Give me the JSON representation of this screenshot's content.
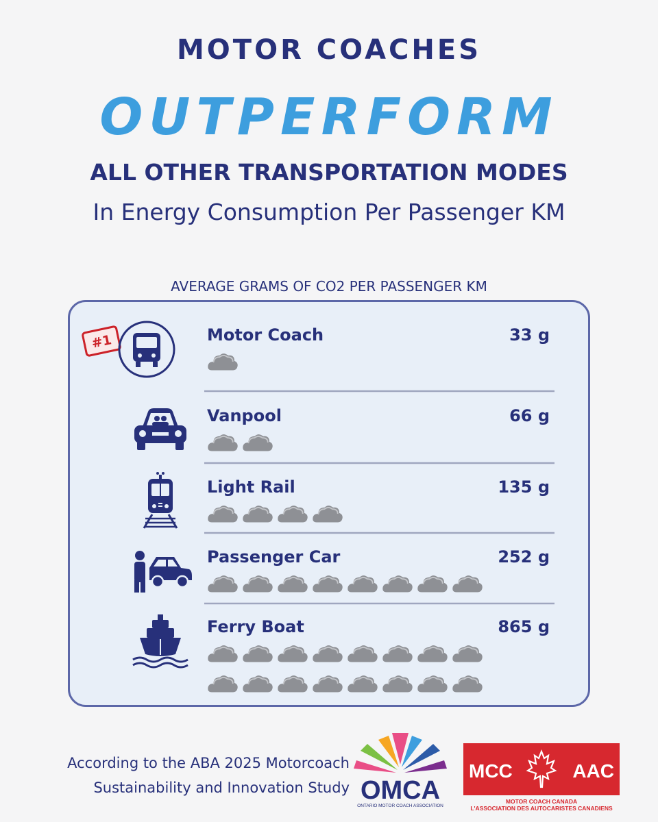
{
  "header": {
    "line1": "MOTOR COACHES",
    "line2": "OUTPERFORM",
    "line3": "ALL OTHER TRANSPORTATION MODES",
    "line4": "In Energy Consumption Per Passenger KM"
  },
  "chart_data": {
    "type": "table",
    "title": "AVERAGE GRAMS OF CO2 PER PASSENGER KM",
    "rank_badge": "#1",
    "unit": "g",
    "rows": [
      {
        "mode": "Motor Coach",
        "value_label": "33 g",
        "value": 33,
        "clouds": 1,
        "icon": "bus-icon"
      },
      {
        "mode": "Vanpool",
        "value_label": "66 g",
        "value": 66,
        "clouds": 2,
        "icon": "van-icon"
      },
      {
        "mode": "Light Rail",
        "value_label": "135 g",
        "value": 135,
        "clouds": 4,
        "icon": "train-icon"
      },
      {
        "mode": "Passenger Car",
        "value_label": "252 g",
        "value": 252,
        "clouds": 8,
        "icon": "car-icon"
      },
      {
        "mode": "Ferry Boat",
        "value_label": "865 g",
        "value": 865,
        "clouds": 16,
        "icon": "ferry-icon"
      }
    ]
  },
  "footer": {
    "source_line1": "According to the ABA 2025 Motorcoach",
    "source_line2": "Sustainability and Innovation Study"
  },
  "logos": {
    "omca_text": "OMCA",
    "omca_subtext": "ONTARIO MOTOR COACH ASSOCIATION",
    "mcc_left": "MCC",
    "mcc_right": "AAC",
    "mcc_subtext1": "MOTOR COACH CANADA",
    "mcc_subtext2": "L'ASSOCIATION DES AUTOCARISTES CANADIENS"
  },
  "colors": {
    "navy": "#27307a",
    "blue": "#3d9ede",
    "badge_red": "#cc2229",
    "mcc_red": "#d7282f",
    "panel": "#e8eff8",
    "cloud": "#8e9095"
  }
}
